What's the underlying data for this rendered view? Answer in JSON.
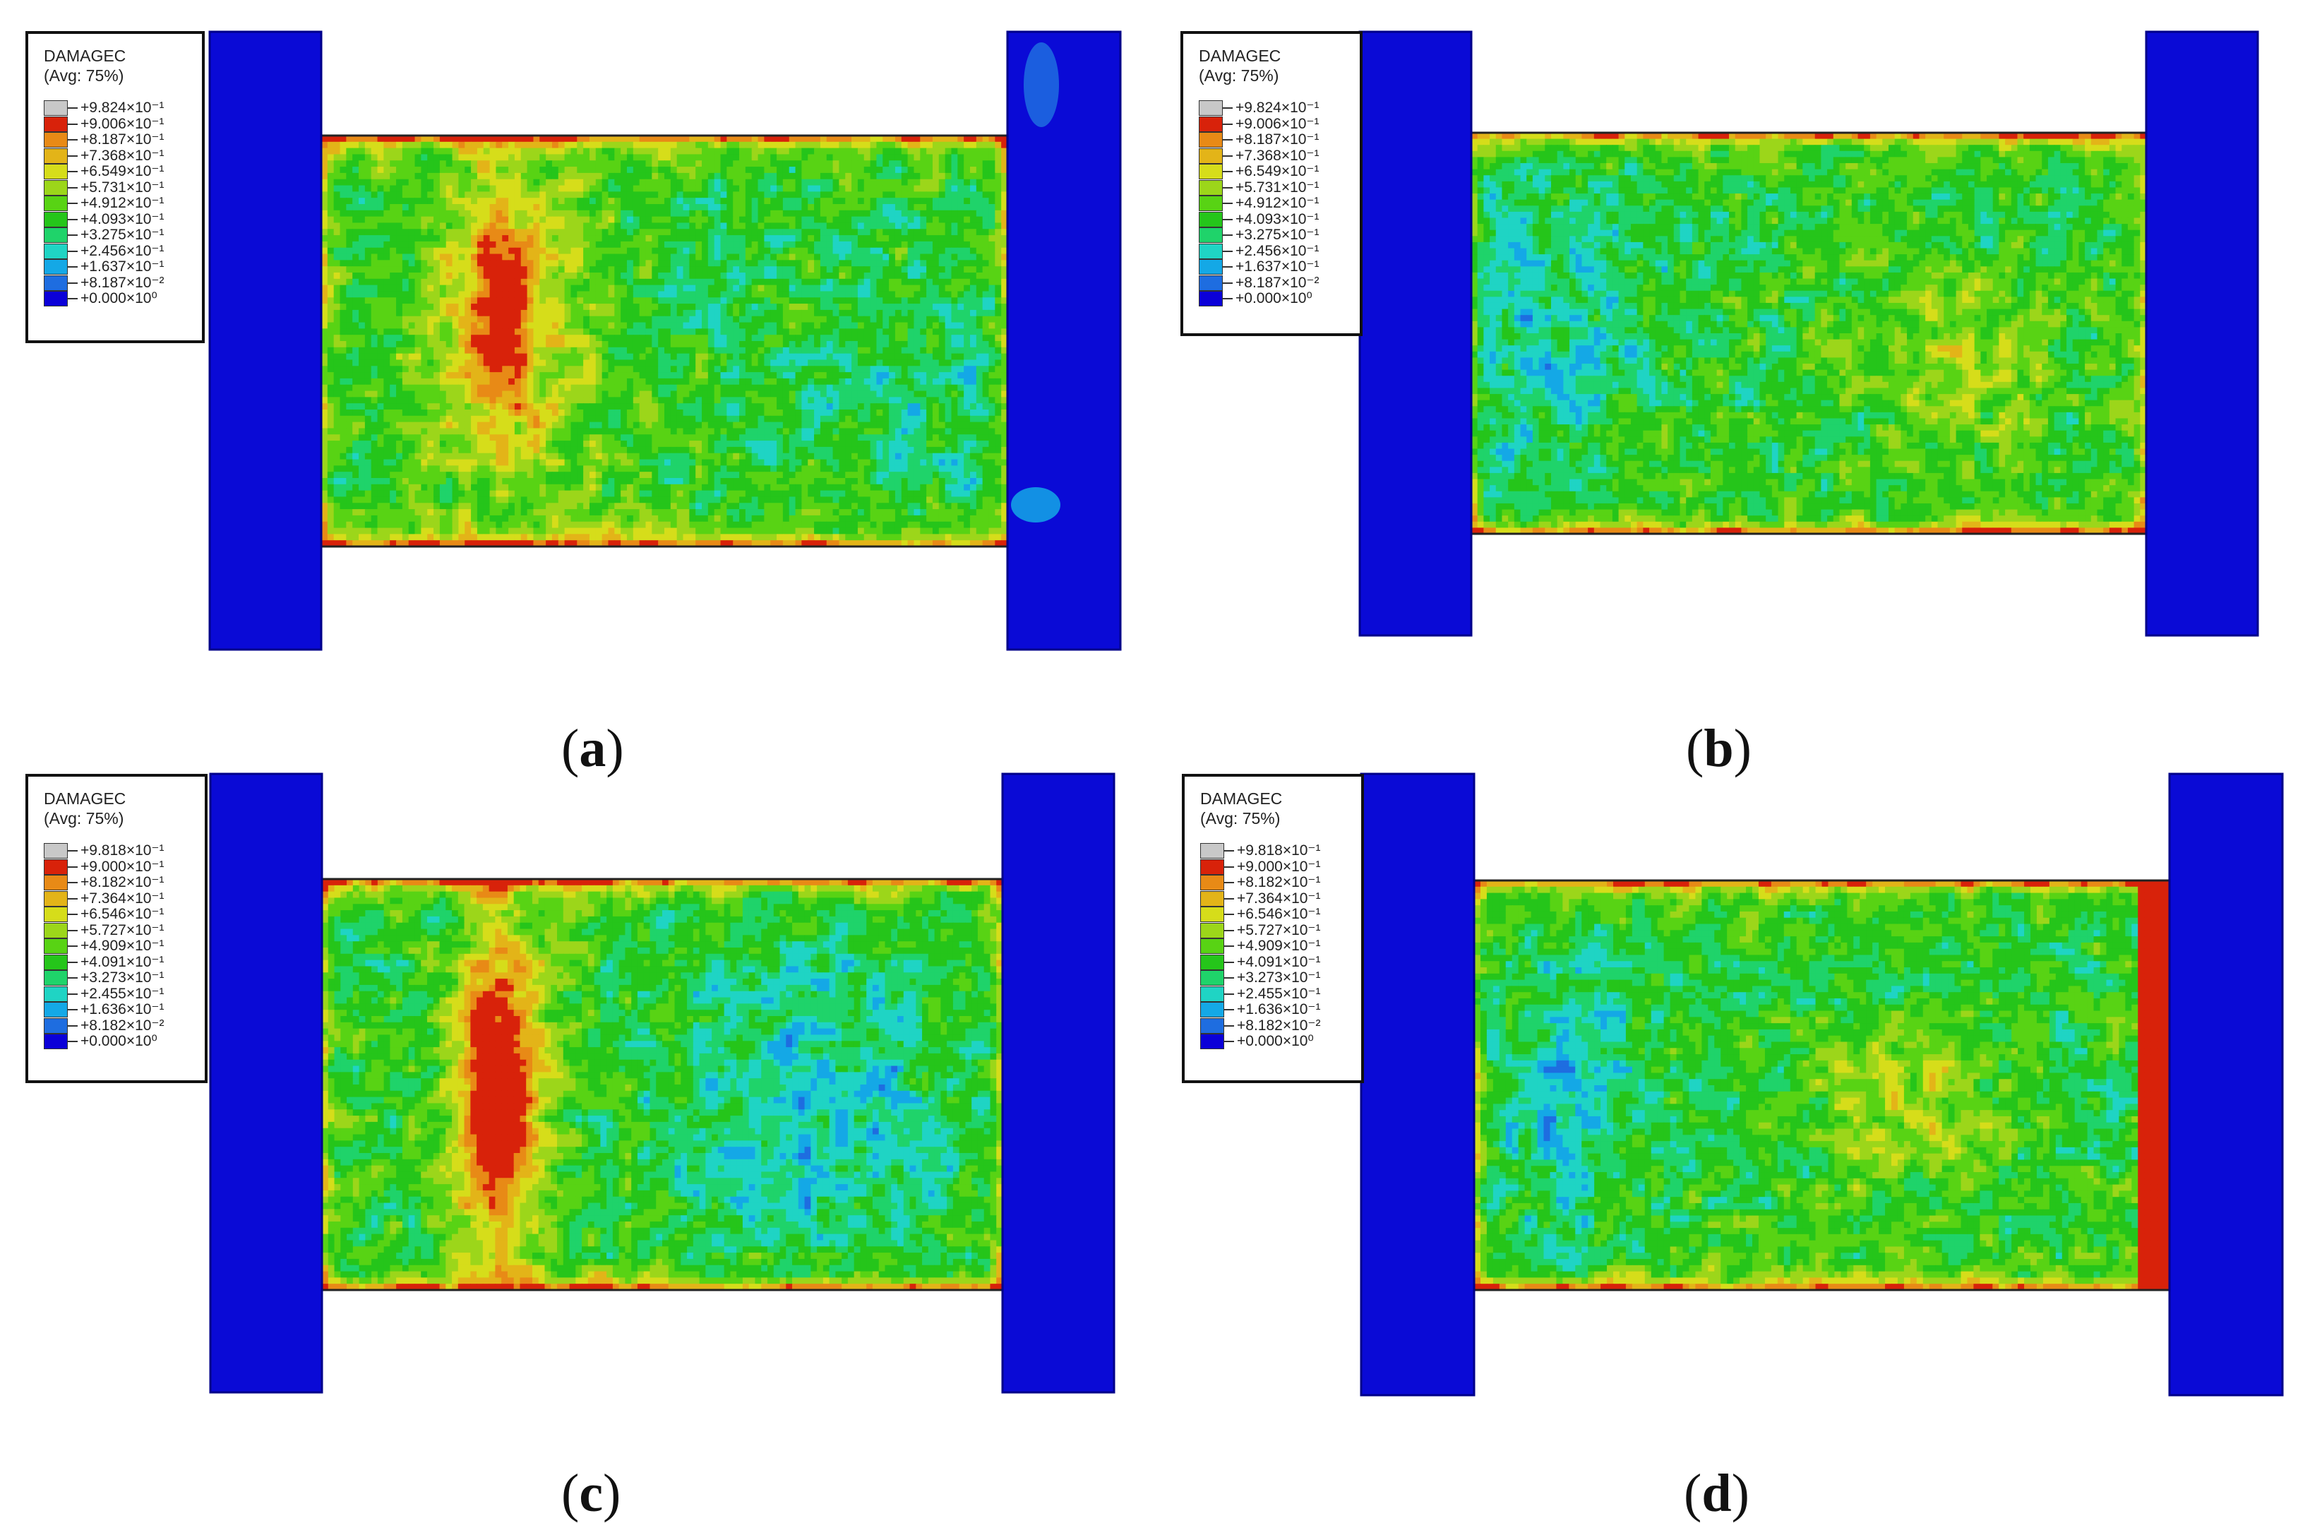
{
  "palette": [
    "#3a3a3a",
    "#0b00d8",
    "#1e6de0",
    "#14a8e6",
    "#1fd4c4",
    "#1fd36a",
    "#25c51a",
    "#58d314",
    "#9cd61a",
    "#d6dd1a",
    "#e3b418",
    "#e88a16",
    "#d8220a"
  ],
  "colors": {
    "block": "#0a0ad6",
    "block_edge": "#00008a",
    "outline": "#222222"
  },
  "panels": [
    {
      "id": "a",
      "caption": "a",
      "legend": {
        "title": "DAMAGEC",
        "subtitle": "(Avg: 75%)",
        "levels": [
          "+9.824×10⁻¹",
          "+9.006×10⁻¹",
          "+8.187×10⁻¹",
          "+7.368×10⁻¹",
          "+6.549×10⁻¹",
          "+5.731×10⁻¹",
          "+4.912×10⁻¹",
          "+4.093×10⁻¹",
          "+3.275×10⁻¹",
          "+2.456×10⁻¹",
          "+1.637×10⁻¹",
          "+8.187×10⁻²",
          "+0.000×10⁰"
        ]
      }
    },
    {
      "id": "b",
      "caption": "b",
      "legend": {
        "title": "DAMAGEC",
        "subtitle": "(Avg: 75%)",
        "levels": [
          "+9.824×10⁻¹",
          "+9.006×10⁻¹",
          "+8.187×10⁻¹",
          "+7.368×10⁻¹",
          "+6.549×10⁻¹",
          "+5.731×10⁻¹",
          "+4.912×10⁻¹",
          "+4.093×10⁻¹",
          "+3.275×10⁻¹",
          "+2.456×10⁻¹",
          "+1.637×10⁻¹",
          "+8.187×10⁻²",
          "+0.000×10⁰"
        ]
      }
    },
    {
      "id": "c",
      "caption": "c",
      "legend": {
        "title": "DAMAGEC",
        "subtitle": "(Avg: 75%)",
        "levels": [
          "+9.818×10⁻¹",
          "+9.000×10⁻¹",
          "+8.182×10⁻¹",
          "+7.364×10⁻¹",
          "+6.546×10⁻¹",
          "+5.727×10⁻¹",
          "+4.909×10⁻¹",
          "+4.091×10⁻¹",
          "+3.273×10⁻¹",
          "+2.455×10⁻¹",
          "+1.636×10⁻¹",
          "+8.182×10⁻²",
          "+0.000×10⁰"
        ]
      }
    },
    {
      "id": "d",
      "caption": "d",
      "legend": {
        "title": "DAMAGEC",
        "subtitle": "(Avg: 75%)",
        "levels": [
          "+9.818×10⁻¹",
          "+9.000×10⁻¹",
          "+8.182×10⁻¹",
          "+7.364×10⁻¹",
          "+6.546×10⁻¹",
          "+5.727×10⁻¹",
          "+4.909×10⁻¹",
          "+4.091×10⁻¹",
          "+3.273×10⁻¹",
          "+2.455×10⁻¹",
          "+1.636×10⁻¹",
          "+8.182×10⁻²",
          "+0.000×10⁰"
        ]
      }
    }
  ]
}
